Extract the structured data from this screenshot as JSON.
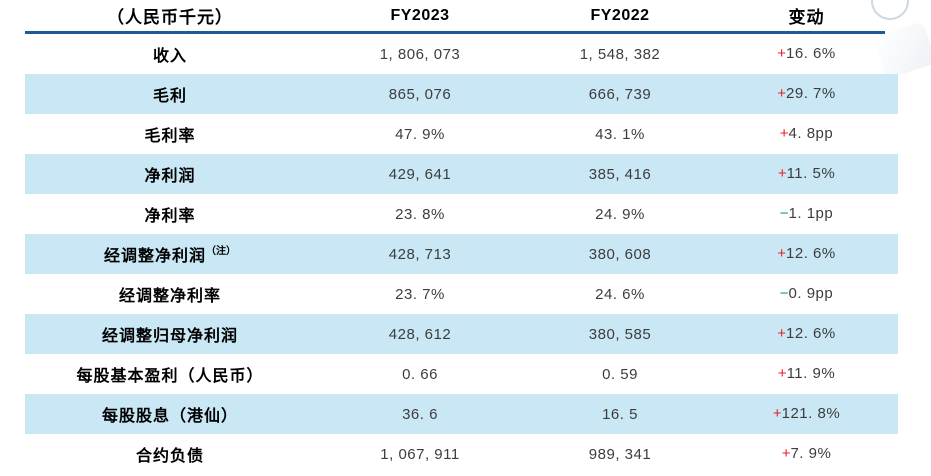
{
  "table": {
    "unit_header": "（人民币千元）",
    "columns": {
      "fy2023": "FY2023",
      "fy2022": "FY2022",
      "change": "变动"
    },
    "colors": {
      "stripe": "#c9e7f5",
      "header_line": "#1e5a96",
      "positive": "#ee1c25",
      "negative": "#00a05f"
    },
    "rows": [
      {
        "label": "收入",
        "note": "",
        "fy2023": "1, 806, 073",
        "fy2022": "1, 548, 382",
        "change_sign": "+",
        "change_value": "16. 6%",
        "direction": "up",
        "striped": false
      },
      {
        "label": "毛利",
        "note": "",
        "fy2023": "865, 076",
        "fy2022": "666, 739",
        "change_sign": "+",
        "change_value": "29. 7%",
        "direction": "up",
        "striped": true
      },
      {
        "label": "毛利率",
        "note": "",
        "fy2023": "47. 9%",
        "fy2022": "43. 1%",
        "change_sign": "+",
        "change_value": "4. 8pp",
        "direction": "up",
        "striped": false
      },
      {
        "label": "净利润",
        "note": "",
        "fy2023": "429, 641",
        "fy2022": "385, 416",
        "change_sign": "+",
        "change_value": "11. 5%",
        "direction": "up",
        "striped": true
      },
      {
        "label": "净利率",
        "note": "",
        "fy2023": "23. 8%",
        "fy2022": "24. 9%",
        "change_sign": "−",
        "change_value": "1. 1pp",
        "direction": "down",
        "striped": false
      },
      {
        "label": "经调整净利润",
        "note": "（注）",
        "fy2023": "428, 713",
        "fy2022": "380, 608",
        "change_sign": "+",
        "change_value": "12. 6%",
        "direction": "up",
        "striped": true
      },
      {
        "label": "经调整净利率",
        "note": "",
        "fy2023": "23. 7%",
        "fy2022": "24. 6%",
        "change_sign": "−",
        "change_value": "0. 9pp",
        "direction": "down",
        "striped": false
      },
      {
        "label": "经调整归母净利润",
        "note": "",
        "fy2023": "428, 612",
        "fy2022": "380, 585",
        "change_sign": "+",
        "change_value": "12. 6%",
        "direction": "up",
        "striped": true
      },
      {
        "label": "每股基本盈利（人民币）",
        "note": "",
        "fy2023": "0. 66",
        "fy2022": "0. 59",
        "change_sign": "+",
        "change_value": "11. 9%",
        "direction": "up",
        "striped": false
      },
      {
        "label": "每股股息（港仙）",
        "note": "",
        "fy2023": "36. 6",
        "fy2022": "16. 5",
        "change_sign": "+",
        "change_value": "121. 8%",
        "direction": "up",
        "striped": true
      },
      {
        "label": "合约负债",
        "note": "",
        "fy2023": "1, 067, 911",
        "fy2022": "989, 341",
        "change_sign": "+",
        "change_value": "7. 9%",
        "direction": "up",
        "striped": false
      }
    ]
  }
}
